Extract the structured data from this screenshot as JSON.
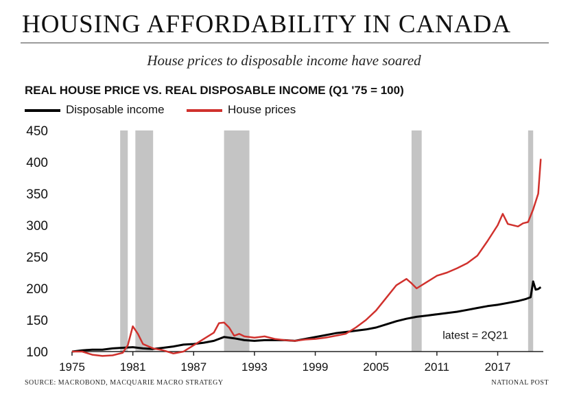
{
  "header": {
    "headline": "HOUSING AFFORDABILITY IN CANADA",
    "subtitle": "House prices to disposable income have soared"
  },
  "footer": {
    "source": "SOURCE: MACROBOND, MACQUARIE MACRO STRATEGY",
    "credit": "NATIONAL POST"
  },
  "chart_data": {
    "type": "line",
    "title": "REAL HOUSE PRICE VS. REAL DISPOSABLE INCOME (Q1 '75 = 100)",
    "xlabel": "",
    "ylabel": "",
    "xlim": [
      1975.0,
      2021.5
    ],
    "ylim": [
      100,
      450
    ],
    "yticks": [
      100,
      150,
      200,
      250,
      300,
      350,
      400,
      450
    ],
    "xticks": [
      1975,
      1981,
      1987,
      1993,
      1999,
      2005,
      2011,
      2017
    ],
    "grid": false,
    "legend_position": "top-left",
    "annotation": "latest = 2Q21",
    "recessions": [
      [
        1979.75,
        1980.5
      ],
      [
        1981.25,
        1983.0
      ],
      [
        1990.0,
        1992.5
      ],
      [
        2008.5,
        2009.5
      ],
      [
        2020.0,
        2020.5
      ]
    ],
    "series": [
      {
        "name": "Disposable income",
        "color": "#000000",
        "x": [
          1975,
          1976,
          1977,
          1978,
          1979,
          1980,
          1981,
          1982,
          1983,
          1984,
          1985,
          1986,
          1987,
          1988,
          1989,
          1990,
          1991,
          1992,
          1993,
          1994,
          1995,
          1996,
          1997,
          1998,
          1999,
          2000,
          2001,
          2002,
          2003,
          2004,
          2005,
          2006,
          2007,
          2008,
          2009,
          2010,
          2011,
          2012,
          2013,
          2014,
          2015,
          2016,
          2017,
          2018,
          2019,
          2019.75,
          2020.25,
          2020.5,
          2020.75,
          2021,
          2021.25
        ],
        "values": [
          100,
          102,
          103,
          103,
          105,
          106,
          107,
          105,
          104,
          106,
          108,
          111,
          112,
          114,
          117,
          123,
          121,
          118,
          117,
          118,
          118,
          118,
          117,
          120,
          123,
          126,
          129,
          131,
          133,
          135,
          138,
          143,
          148,
          152,
          155,
          157,
          159,
          161,
          163,
          166,
          169,
          172,
          174,
          177,
          180,
          183,
          186,
          211,
          198,
          199,
          202
        ]
      },
      {
        "name": "House prices",
        "color": "#d0312d",
        "x": [
          1975,
          1976,
          1977,
          1978,
          1979,
          1980,
          1980.5,
          1981,
          1981.5,
          1982,
          1983,
          1984,
          1985,
          1986,
          1987,
          1988,
          1989,
          1989.5,
          1990,
          1990.5,
          1991,
          1991.5,
          1992,
          1993,
          1994,
          1995,
          1996,
          1997,
          1998,
          1999,
          2000,
          2001,
          2002,
          2003,
          2004,
          2005,
          2006,
          2007,
          2008,
          2008.5,
          2009,
          2010,
          2011,
          2012,
          2013,
          2014,
          2015,
          2016,
          2017,
          2017.5,
          2018,
          2019,
          2019.5,
          2020,
          2020.5,
          2021,
          2021.25
        ],
        "values": [
          100,
          100,
          95,
          93,
          94,
          98,
          110,
          140,
          128,
          112,
          105,
          102,
          97,
          100,
          110,
          120,
          130,
          145,
          146,
          138,
          125,
          128,
          124,
          122,
          124,
          120,
          118,
          117,
          119,
          120,
          122,
          125,
          128,
          138,
          150,
          165,
          185,
          205,
          215,
          208,
          200,
          210,
          220,
          225,
          232,
          240,
          252,
          275,
          300,
          318,
          302,
          298,
          303,
          305,
          325,
          350,
          405
        ]
      }
    ]
  }
}
